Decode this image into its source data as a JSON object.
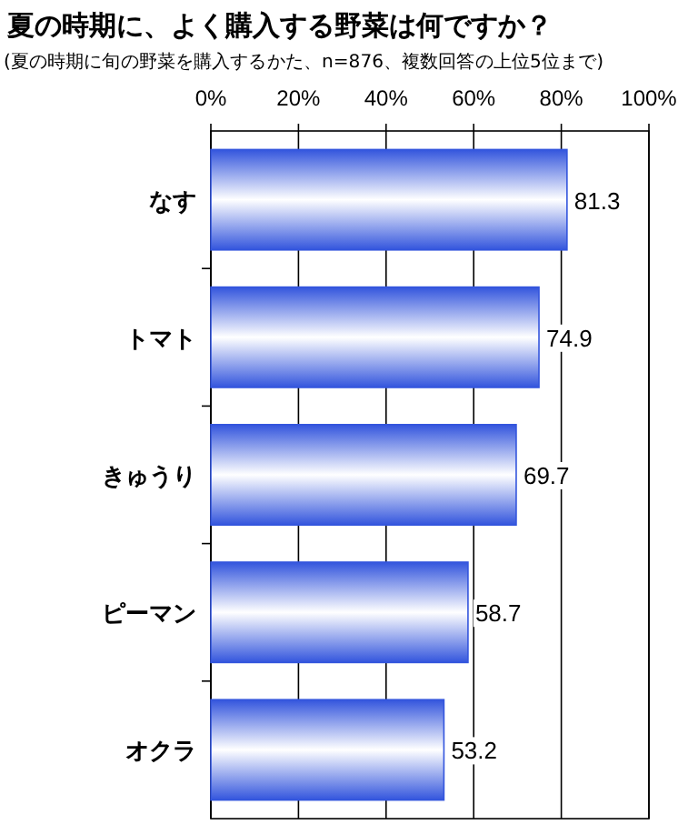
{
  "chart_data": {
    "type": "bar",
    "orientation": "horizontal",
    "title": "夏の時期に、よく購入する野菜は何ですか？",
    "subtitle": "(夏の時期に旬の野菜を購入するかた、n=876、複数回答の上位5位まで)",
    "categories": [
      "なす",
      "トマト",
      "きゅうり",
      "ピーマン",
      "オクラ"
    ],
    "values": [
      81.3,
      74.9,
      69.7,
      58.7,
      53.2
    ],
    "color": "#3355dd",
    "xlim": [
      0,
      100
    ],
    "xticks": [
      {
        "value": 0,
        "label": "0%"
      },
      {
        "value": 20,
        "label": "20%"
      },
      {
        "value": 40,
        "label": "40%"
      },
      {
        "value": 60,
        "label": "60%"
      },
      {
        "value": 80,
        "label": "80%"
      },
      {
        "value": 100,
        "label": "100%"
      }
    ],
    "grid": "x",
    "data_labels": true
  }
}
